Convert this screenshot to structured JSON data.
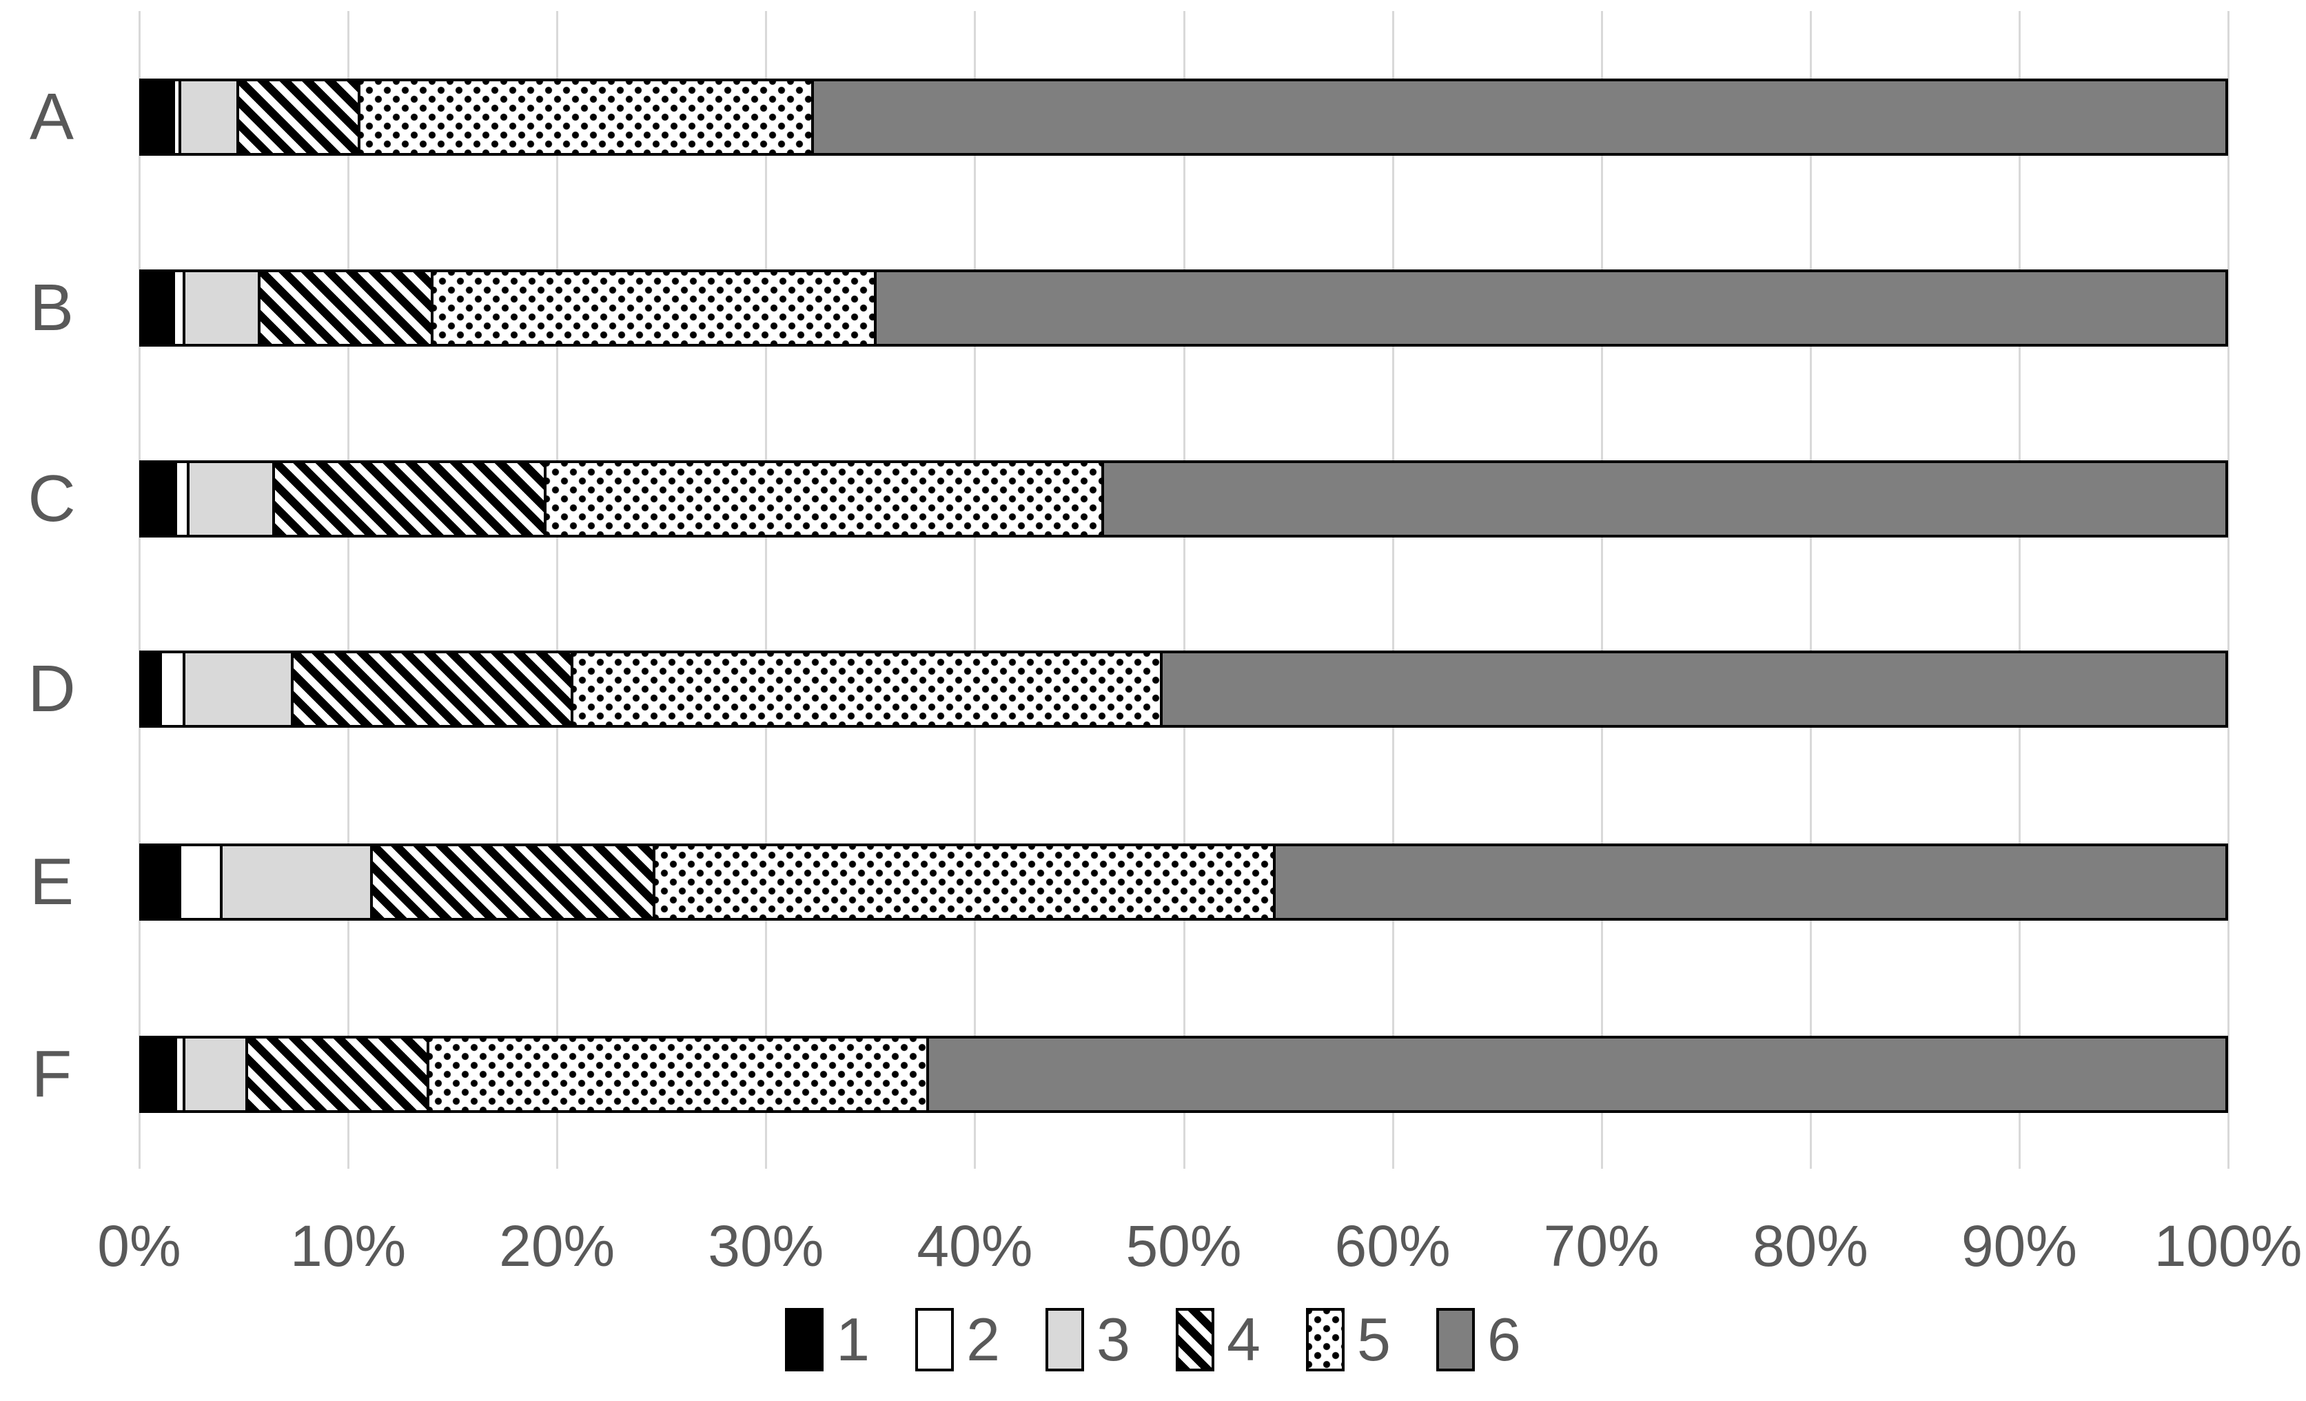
{
  "chart_data": {
    "type": "bar",
    "orientation": "horizontal",
    "stacked": true,
    "units": "%",
    "title": "",
    "xlabel": "",
    "ylabel": "",
    "grid": true,
    "categories": [
      "A",
      "B",
      "C",
      "D",
      "E",
      "F"
    ],
    "series": [
      {
        "name": "1",
        "style": "solid-black",
        "values": [
          1.7,
          1.7,
          1.8,
          1.1,
          2.0,
          1.8
        ]
      },
      {
        "name": "2",
        "style": "solid-white",
        "values": [
          0.3,
          0.5,
          0.6,
          1.1,
          2.0,
          0.4
        ]
      },
      {
        "name": "3",
        "style": "solid-lightgray",
        "values": [
          2.8,
          3.6,
          4.1,
          5.2,
          7.2,
          3.0
        ]
      },
      {
        "name": "4",
        "style": "diagonal-hatch",
        "values": [
          5.8,
          8.3,
          13.0,
          13.4,
          13.5,
          8.7
        ]
      },
      {
        "name": "5",
        "style": "dotted",
        "values": [
          21.7,
          21.2,
          26.7,
          28.2,
          29.7,
          23.9
        ]
      },
      {
        "name": "6",
        "style": "solid-darkgray",
        "values": [
          67.7,
          64.7,
          53.8,
          51.0,
          45.6,
          62.2
        ]
      }
    ],
    "x_axis": {
      "min": 0,
      "max": 100,
      "tick_step": 10,
      "ticks": [
        "0%",
        "10%",
        "20%",
        "30%",
        "40%",
        "50%",
        "60%",
        "70%",
        "80%",
        "90%",
        "100%"
      ]
    },
    "legend": {
      "position": "bottom",
      "entries": [
        "1",
        "2",
        "3",
        "4",
        "5",
        "6"
      ]
    }
  },
  "colors": {
    "background": "#ffffff",
    "text": "#595959",
    "gridline": "#d9d9d9",
    "series1_black": "#000000",
    "series2_white": "#ffffff",
    "series3_lightgray": "#d9d9d9",
    "series4_hatch_fg": "#000000",
    "series5_dot_fg": "#000000",
    "series6_darkgray": "#7f7f7f",
    "segment_border": "#000000"
  }
}
